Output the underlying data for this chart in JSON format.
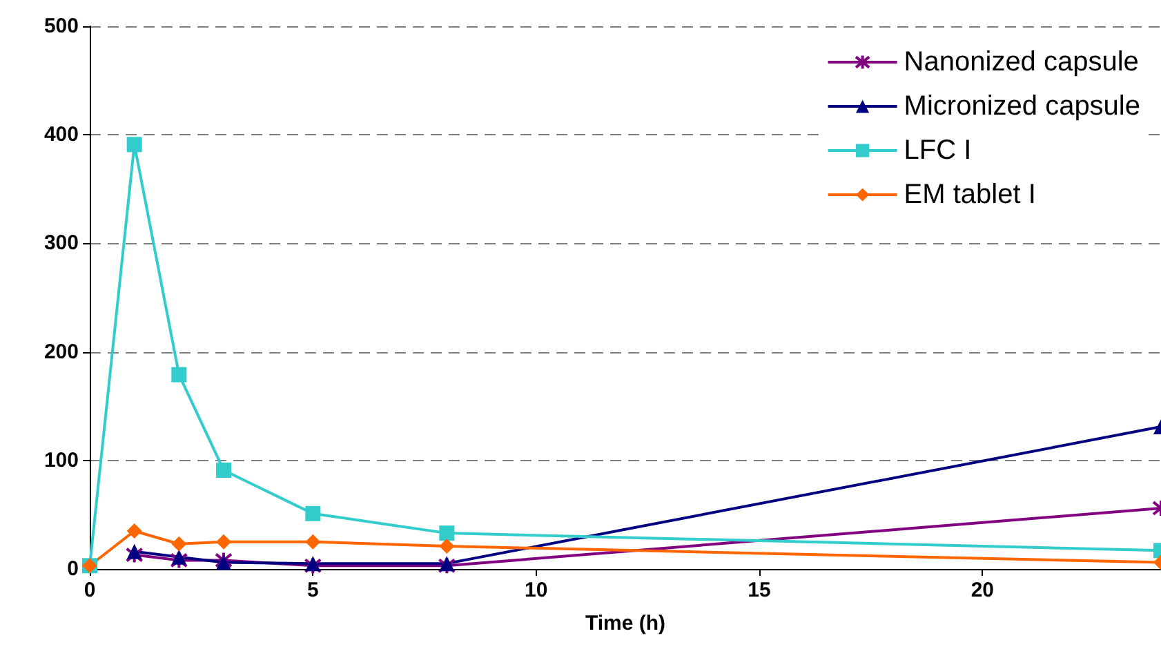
{
  "chart_data": {
    "type": "line",
    "xlabel": "Time (h)",
    "x": [
      0,
      1,
      2,
      3,
      5,
      8,
      24
    ],
    "series": [
      {
        "name": "Nanonized capsule",
        "color": "#800080",
        "marker": "cross",
        "values": [
          null,
          13,
          8,
          8,
          3,
          3,
          56
        ]
      },
      {
        "name": "Micronized capsule",
        "color": "#000080",
        "marker": "triangle",
        "values": [
          null,
          16,
          11,
          6,
          5,
          5,
          131
        ]
      },
      {
        "name": "LFC I",
        "color": "#33cccc",
        "marker": "square",
        "values": [
          3,
          391,
          179,
          91,
          51,
          33,
          17
        ]
      },
      {
        "name": "EM tablet I",
        "color": "#ff6600",
        "marker": "diamond",
        "values": [
          3,
          35,
          23,
          25,
          25,
          21,
          6
        ]
      }
    ],
    "xlim": [
      0,
      24
    ],
    "xticks": [
      0,
      5,
      10,
      15,
      20
    ],
    "ylim": [
      0,
      500
    ],
    "yticks": [
      0,
      100,
      200,
      300,
      400,
      500
    ],
    "grid": "y",
    "legend": "top right"
  }
}
